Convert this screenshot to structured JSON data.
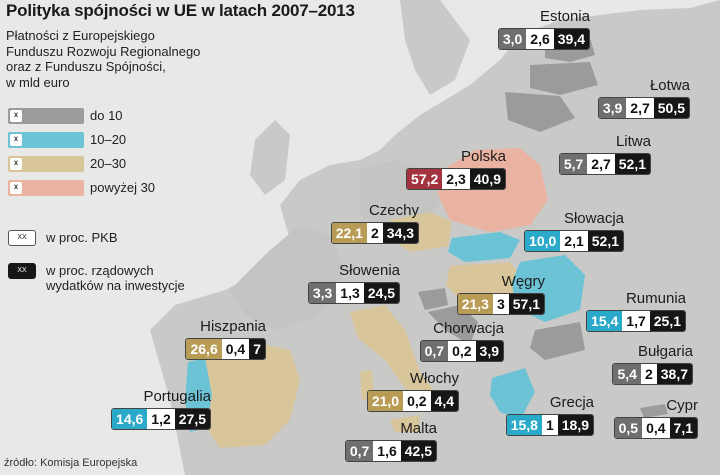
{
  "title": "Polityka spójności w UE w latach 2007–2013",
  "subtitle_lines": [
    "Płatności z Europejskiego",
    "Funduszu Rozwoju Regionalnego",
    "oraz z Funduszu Spójności,",
    "w mld euro"
  ],
  "legend": [
    {
      "label": "do 10",
      "color": "#9b9b9b",
      "mark": "X"
    },
    {
      "label": "10–20",
      "color": "#6cc3d5",
      "mark": "X"
    },
    {
      "label": "20–30",
      "color": "#d8c69a",
      "mark": "X"
    },
    {
      "label": "powyżej 30",
      "color": "#e9b2a1",
      "mark": "X"
    }
  ],
  "legend_keys": [
    {
      "label": "w proc. PKB",
      "sample": "XX",
      "style": "white"
    },
    {
      "label_lines": [
        "w proc. rządowych",
        "wydatków na inwestycje"
      ],
      "sample": "XX",
      "style": "black"
    }
  ],
  "category_colors": {
    "gray": "#6f6f6f",
    "blue": "#2aa9c8",
    "tan": "#b89b55",
    "red": "#a3323f"
  },
  "countries": [
    {
      "name": "Estonia",
      "payments": "3,0",
      "gdp_pct": "2,6",
      "invest_pct": "39,4",
      "category": "gray"
    },
    {
      "name": "Łotwa",
      "payments": "3,9",
      "gdp_pct": "2,7",
      "invest_pct": "50,5",
      "category": "gray"
    },
    {
      "name": "Litwa",
      "payments": "5,7",
      "gdp_pct": "2,7",
      "invest_pct": "52,1",
      "category": "gray"
    },
    {
      "name": "Polska",
      "payments": "57,2",
      "gdp_pct": "2,3",
      "invest_pct": "40,9",
      "category": "red"
    },
    {
      "name": "Czechy",
      "payments": "22,1",
      "gdp_pct": "2",
      "invest_pct": "34,3",
      "category": "tan"
    },
    {
      "name": "Słowacja",
      "payments": "10,0",
      "gdp_pct": "2,1",
      "invest_pct": "52,1",
      "category": "blue"
    },
    {
      "name": "Słowenia",
      "payments": "3,3",
      "gdp_pct": "1,3",
      "invest_pct": "24,5",
      "category": "gray"
    },
    {
      "name": "Węgry",
      "payments": "21,3",
      "gdp_pct": "3",
      "invest_pct": "57,1",
      "category": "tan"
    },
    {
      "name": "Rumunia",
      "payments": "15,4",
      "gdp_pct": "1,7",
      "invest_pct": "25,1",
      "category": "blue"
    },
    {
      "name": "Hiszpania",
      "payments": "26,6",
      "gdp_pct": "0,4",
      "invest_pct": "7",
      "category": "tan"
    },
    {
      "name": "Chorwacja",
      "payments": "0,7",
      "gdp_pct": "0,2",
      "invest_pct": "3,9",
      "category": "gray"
    },
    {
      "name": "Bułgaria",
      "payments": "5,4",
      "gdp_pct": "2",
      "invest_pct": "38,7",
      "category": "gray"
    },
    {
      "name": "Włochy",
      "payments": "21,0",
      "gdp_pct": "0,2",
      "invest_pct": "4,4",
      "category": "tan"
    },
    {
      "name": "Portugalia",
      "payments": "14,6",
      "gdp_pct": "1,2",
      "invest_pct": "27,5",
      "category": "blue"
    },
    {
      "name": "Grecja",
      "payments": "15,8",
      "gdp_pct": "1",
      "invest_pct": "18,9",
      "category": "blue"
    },
    {
      "name": "Cypr",
      "payments": "0,5",
      "gdp_pct": "0,4",
      "invest_pct": "7,1",
      "category": "gray"
    },
    {
      "name": "Malta",
      "payments": "0,7",
      "gdp_pct": "1,6",
      "invest_pct": "42,5",
      "category": "gray"
    }
  ],
  "source": "źródło: Komisja Europejska"
}
